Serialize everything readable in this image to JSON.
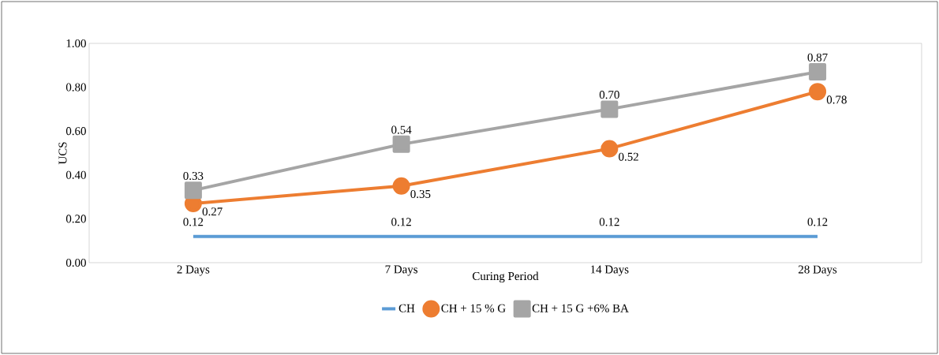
{
  "chart_data": {
    "type": "line",
    "xlabel": "Curing Period",
    "ylabel": "UCS",
    "categories": [
      "2 Days",
      "7 Days",
      "14 Days",
      "28 Days"
    ],
    "series": [
      {
        "name": "CH",
        "color": "#5b9bd5",
        "marker": "none",
        "values": [
          0.12,
          0.12,
          0.12,
          0.12
        ],
        "value_labels": [
          "0.12",
          "0.12",
          "0.12",
          "0.12"
        ]
      },
      {
        "name": "CH + 15 % G",
        "color": "#ed7d31",
        "marker": "circle",
        "values": [
          0.27,
          0.35,
          0.52,
          0.78
        ],
        "value_labels": [
          "0.27",
          "0.35",
          "0.52",
          "0.78"
        ]
      },
      {
        "name": "CH + 15 G +6% BA",
        "color": "#a5a5a5",
        "marker": "square",
        "values": [
          0.33,
          0.54,
          0.7,
          0.87
        ],
        "value_labels": [
          "0.33",
          "0.54",
          "0.70",
          "0.87"
        ]
      }
    ],
    "ylim": [
      0,
      1
    ],
    "yticks": [
      {
        "value": 0,
        "label": "0.00"
      },
      {
        "value": 0.2,
        "label": "0.20"
      },
      {
        "value": 0.4,
        "label": "0.40"
      },
      {
        "value": 0.6,
        "label": "0.60"
      },
      {
        "value": 0.8,
        "label": "0.80"
      },
      {
        "value": 1,
        "label": "1.00"
      }
    ],
    "grid": false,
    "legend": "bottom",
    "line_style": "solid"
  }
}
